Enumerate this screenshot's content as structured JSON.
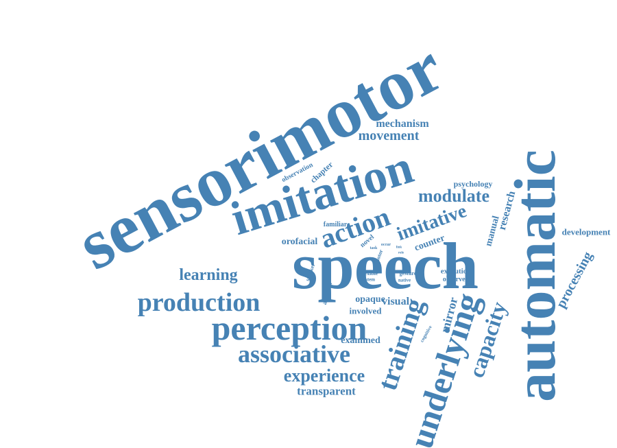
{
  "word_cloud": {
    "color": "#4682b4",
    "words": [
      {
        "id": "sensorimotor",
        "text": "sensorimotor"
      },
      {
        "id": "speech",
        "text": "speech"
      },
      {
        "id": "imitation",
        "text": "imitation"
      },
      {
        "id": "automatic",
        "text": "automatic"
      },
      {
        "id": "perception",
        "text": "perception"
      },
      {
        "id": "production",
        "text": "production"
      },
      {
        "id": "associative",
        "text": "associative"
      },
      {
        "id": "underlying",
        "text": "underlying"
      },
      {
        "id": "training",
        "text": "training"
      },
      {
        "id": "action",
        "text": "action"
      },
      {
        "id": "imitative",
        "text": "imitative"
      },
      {
        "id": "modulate",
        "text": "modulate"
      },
      {
        "id": "capacity",
        "text": "capacity"
      },
      {
        "id": "experience",
        "text": "experience"
      },
      {
        "id": "learning",
        "text": "learning"
      },
      {
        "id": "movement",
        "text": "movement"
      },
      {
        "id": "mechanism",
        "text": "mechanism"
      },
      {
        "id": "processing",
        "text": "processing"
      },
      {
        "id": "development",
        "text": "development"
      },
      {
        "id": "transparent",
        "text": "transparent"
      },
      {
        "id": "visual",
        "text": "visual"
      },
      {
        "id": "opaque",
        "text": "opaque"
      },
      {
        "id": "involved",
        "text": "involved"
      },
      {
        "id": "examined",
        "text": "examined"
      },
      {
        "id": "mirror",
        "text": "mirror"
      },
      {
        "id": "research",
        "text": "research"
      },
      {
        "id": "manual",
        "text": "manual"
      },
      {
        "id": "psychology",
        "text": "psychology"
      },
      {
        "id": "counter",
        "text": "counter"
      },
      {
        "id": "orofacial",
        "text": "orofacial"
      },
      {
        "id": "observation",
        "text": "observation"
      },
      {
        "id": "chapter",
        "text": "chapter"
      },
      {
        "id": "familiar",
        "text": "familiar"
      },
      {
        "id": "novel",
        "text": "novel"
      },
      {
        "id": "execution",
        "text": "execution"
      },
      {
        "id": "observed",
        "text": "observed"
      },
      {
        "id": "gesture",
        "text": "gesture"
      },
      {
        "id": "native",
        "text": "native"
      },
      {
        "id": "flexible",
        "text": "flexible"
      },
      {
        "id": "system",
        "text": "system"
      },
      {
        "id": "account",
        "text": "account"
      },
      {
        "id": "speaker",
        "text": "speaker"
      },
      {
        "id": "motor",
        "text": "motor"
      },
      {
        "id": "occur",
        "text": "occur"
      },
      {
        "id": "task",
        "text": "task"
      },
      {
        "id": "cognitive",
        "text": "cognitive"
      },
      {
        "id": "role",
        "text": "role"
      },
      {
        "id": "link",
        "text": "link"
      }
    ]
  }
}
